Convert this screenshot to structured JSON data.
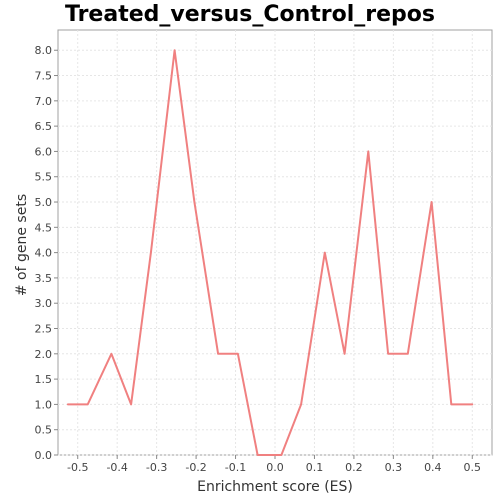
{
  "chart_data": {
    "type": "line",
    "title": "Treated_versus_Control_repos",
    "xlabel": "Enrichment score (ES)",
    "ylabel": "# of gene sets",
    "xlim": [
      -0.55,
      0.55
    ],
    "ylim": [
      0.0,
      8.4
    ],
    "x_ticks": [
      -0.5,
      -0.4,
      -0.3,
      -0.2,
      -0.1,
      0.0,
      0.1,
      0.2,
      0.3,
      0.4,
      0.5
    ],
    "x_tick_labels": [
      "-0.5",
      "-0.4",
      "-0.3",
      "-0.2",
      "-0.1",
      "0.0",
      "0.1",
      "0.2",
      "0.3",
      "0.4",
      "0.5"
    ],
    "y_ticks": [
      0,
      0.5,
      1,
      1.5,
      2,
      2.5,
      3,
      3.5,
      4,
      4.5,
      5,
      5.5,
      6,
      6.5,
      7,
      7.5,
      8
    ],
    "y_tick_labels": [
      "0.0",
      "0.5",
      "1.0",
      "1.5",
      "2.0",
      "2.5",
      "3.0",
      "3.5",
      "4.0",
      "4.5",
      "5.0",
      "5.5",
      "6.0",
      "6.5",
      "7.0",
      "7.5",
      "8.0"
    ],
    "grid": true,
    "series": [
      {
        "color": "#f08080",
        "x": [
          -0.525,
          -0.4748,
          -0.4147,
          -0.3646,
          -0.3145,
          -0.2544,
          -0.2043,
          -0.1442,
          -0.0941,
          -0.044,
          0.0161,
          0.0662,
          0.1263,
          0.1764,
          0.2365,
          0.2866,
          0.3367,
          0.3968,
          0.4469,
          0.5
        ],
        "y": [
          1,
          1,
          2,
          1,
          4,
          8,
          5,
          2,
          2,
          0,
          0,
          1,
          4,
          2,
          6,
          2,
          2,
          5,
          1,
          1
        ]
      }
    ]
  }
}
